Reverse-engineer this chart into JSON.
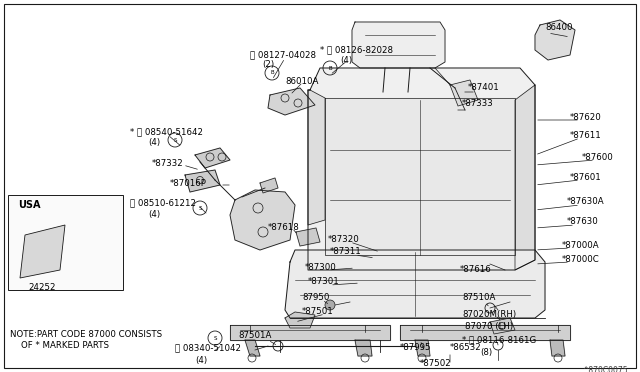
{
  "bg_color": "#ffffff",
  "border_color": "#000000",
  "diagram_ref": "^870C0075",
  "note_line1": "NOTE:PART CODE 87000 CONSISTS",
  "note_line2": "    OF * MARKED PARTS",
  "usa_label": "USA",
  "usa_part": "24252",
  "figsize": [
    6.4,
    3.72
  ],
  "dpi": 100
}
